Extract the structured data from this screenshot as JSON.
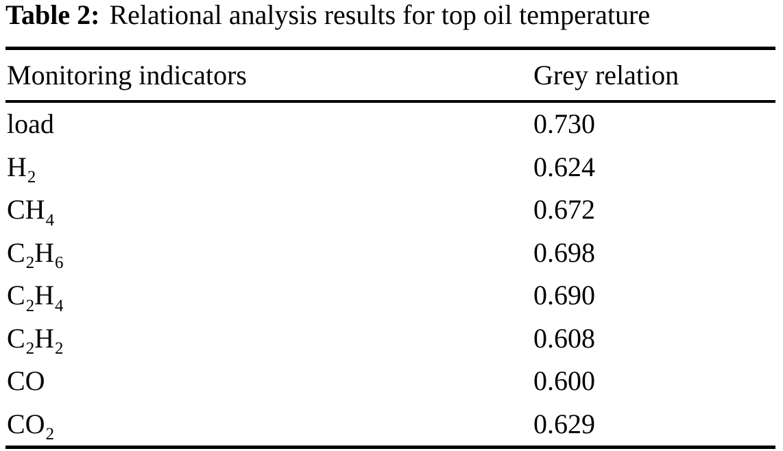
{
  "caption": {
    "label": "Table 2:",
    "text": "Relational analysis results for top oil temperature"
  },
  "table": {
    "columns": [
      "Monitoring indicators",
      "Grey relation"
    ],
    "rows": [
      {
        "indicator": [
          {
            "text": "load"
          }
        ],
        "value": "0.730"
      },
      {
        "indicator": [
          {
            "text": "H"
          },
          {
            "sub": "2"
          }
        ],
        "value": "0.624"
      },
      {
        "indicator": [
          {
            "text": "CH"
          },
          {
            "sub": "4"
          }
        ],
        "value": "0.672"
      },
      {
        "indicator": [
          {
            "text": "C"
          },
          {
            "sub": "2"
          },
          {
            "text": "H"
          },
          {
            "sub": "6"
          }
        ],
        "value": "0.698"
      },
      {
        "indicator": [
          {
            "text": "C"
          },
          {
            "sub": "2"
          },
          {
            "text": "H"
          },
          {
            "sub": "4"
          }
        ],
        "value": "0.690"
      },
      {
        "indicator": [
          {
            "text": "C"
          },
          {
            "sub": "2"
          },
          {
            "text": "H"
          },
          {
            "sub": "2"
          }
        ],
        "value": "0.608"
      },
      {
        "indicator": [
          {
            "text": "CO"
          }
        ],
        "value": "0.600"
      },
      {
        "indicator": [
          {
            "text": "CO"
          },
          {
            "sub": "2"
          }
        ],
        "value": "0.629"
      }
    ]
  },
  "colors": {
    "text": "#000000",
    "background": "#ffffff",
    "rule": "#000000"
  }
}
